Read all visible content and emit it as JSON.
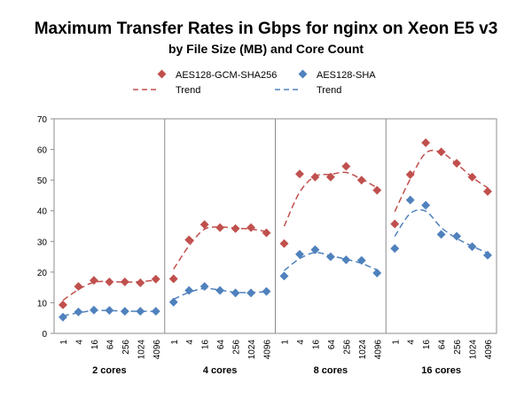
{
  "chart_data": {
    "type": "scatter",
    "title": "Maximum Transfer Rates in Gbps for nginx on Xeon E5 v3",
    "subtitle": "by File Size (MB) and Core Count",
    "xlabel": "",
    "ylabel": "",
    "ylim": [
      0,
      70
    ],
    "yticks": [
      0,
      10,
      20,
      30,
      40,
      50,
      60,
      70
    ],
    "grid": false,
    "legend_position": "top",
    "file_sizes": [
      "1",
      "4",
      "16",
      "64",
      "256",
      "1024",
      "4096"
    ],
    "groups": [
      "2 cores",
      "4 cores",
      "8 cores",
      "16 cores"
    ],
    "series": [
      {
        "name": "AES128-GCM-SHA256",
        "trend_label": "Trend",
        "color": "#c0504d",
        "values": [
          [
            9.3,
            15.3,
            17.3,
            16.8,
            16.8,
            16.5,
            17.7
          ],
          [
            17.8,
            30.5,
            35.5,
            34.5,
            34.2,
            34.5,
            32.8
          ],
          [
            29.3,
            52.0,
            51.0,
            51.0,
            54.5,
            50.0,
            46.7
          ],
          [
            35.7,
            51.8,
            62.2,
            59.2,
            55.5,
            51.0,
            46.3
          ]
        ]
      },
      {
        "name": "AES128-SHA",
        "trend_label": "Trend",
        "color": "#4f81bd",
        "values": [
          [
            5.3,
            7.0,
            7.6,
            7.5,
            7.2,
            7.2,
            7.2
          ],
          [
            10.2,
            14.0,
            15.3,
            14.0,
            13.2,
            13.2,
            13.7
          ],
          [
            18.7,
            25.8,
            27.3,
            25.0,
            24.0,
            23.8,
            19.7
          ],
          [
            27.7,
            43.5,
            41.8,
            32.3,
            31.7,
            28.3,
            25.5
          ]
        ]
      }
    ]
  }
}
